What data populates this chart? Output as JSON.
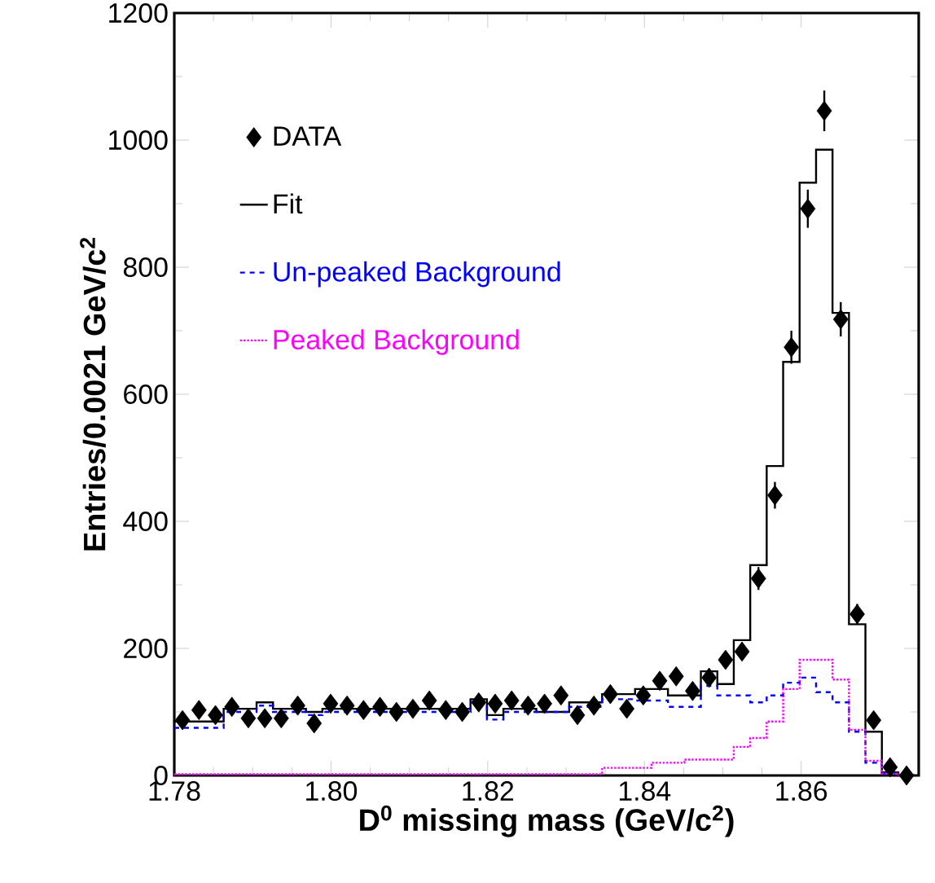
{
  "chart_data": {
    "type": "histogram",
    "xlabel": "D$^{0}$ missing mass (GeV/c$^{2}$)",
    "ylabel": "Entries/0.0021 GeV/c$^{2}$",
    "xlim": [
      1.78,
      1.875
    ],
    "ylim": [
      0,
      1200
    ],
    "xticks": [
      1.78,
      {
        "value": 1.8,
        "label": "1.80"
      },
      1.82,
      1.84,
      1.86
    ],
    "yticks": [
      0,
      200,
      400,
      600,
      800,
      1000,
      1200
    ],
    "legend": "top left",
    "bins": [
      1.78,
      1.7821,
      1.7842,
      1.7863,
      1.7884,
      1.7905,
      1.7926,
      1.7947,
      1.7968,
      1.7989,
      1.801,
      1.8031,
      1.8052,
      1.8073,
      1.8094,
      1.8115,
      1.8136,
      1.8157,
      1.8178,
      1.8199,
      1.822,
      1.8241,
      1.8262,
      1.8283,
      1.8304,
      1.8325,
      1.8346,
      1.8367,
      1.8388,
      1.8409,
      1.843,
      1.8451,
      1.8472,
      1.8493,
      1.8514,
      1.8535,
      1.8556,
      1.8577,
      1.8598,
      1.8619,
      1.864,
      1.8661,
      1.8682,
      1.8703,
      1.8724,
      1.8745
    ],
    "series": [
      {
        "name": "DATA",
        "type": "scatter",
        "marker": "diamond",
        "color": "#000000",
        "x": [
          1.78105,
          1.78315,
          1.78525,
          1.78735,
          1.78945,
          1.79155,
          1.79365,
          1.79575,
          1.79785,
          1.79995,
          1.80205,
          1.80415,
          1.80625,
          1.80835,
          1.81045,
          1.81255,
          1.81465,
          1.81675,
          1.81885,
          1.82095,
          1.82305,
          1.82515,
          1.82725,
          1.82935,
          1.83145,
          1.83355,
          1.83565,
          1.83775,
          1.83985,
          1.84195,
          1.84405,
          1.84615,
          1.84825,
          1.85035,
          1.85245,
          1.85455,
          1.85665,
          1.85875,
          1.86085,
          1.86295,
          1.86505,
          1.86715,
          1.86925,
          1.87135,
          1.87345
        ],
        "values": [
          87,
          103,
          95,
          108,
          90,
          90,
          90,
          110,
          82,
          113,
          110,
          103,
          108,
          100,
          105,
          118,
          103,
          100,
          115,
          113,
          118,
          110,
          113,
          126,
          95,
          110,
          128,
          105,
          126,
          149,
          156,
          133,
          154,
          182,
          195,
          310,
          441,
          674,
          892,
          1046,
          718,
          254,
          87,
          13,
          0
        ],
        "errors": [
          null,
          null,
          null,
          null,
          null,
          null,
          null,
          null,
          null,
          null,
          null,
          null,
          null,
          null,
          null,
          null,
          null,
          null,
          null,
          null,
          null,
          null,
          null,
          null,
          null,
          null,
          null,
          null,
          null,
          null,
          null,
          null,
          null,
          null,
          null,
          18,
          21,
          26,
          30,
          32,
          27,
          16,
          null,
          null,
          null
        ]
      },
      {
        "name": "Fit",
        "line_style": "solid",
        "color": "#000000",
        "values": [
          85,
          85,
          85,
          105,
          105,
          115,
          105,
          105,
          100,
          105,
          105,
          105,
          105,
          105,
          105,
          105,
          105,
          105,
          120,
          95,
          105,
          105,
          100,
          100,
          115,
          115,
          128,
          128,
          136,
          136,
          126,
          126,
          164,
          144,
          213,
          331,
          487,
          651,
          933,
          985,
          728,
          238,
          69,
          5,
          0
        ]
      },
      {
        "name": "Un-peaked Background",
        "line_style": "dashed",
        "color": "#0000ff",
        "values": [
          75,
          75,
          75,
          100,
          100,
          110,
          100,
          100,
          95,
          100,
          100,
          100,
          100,
          100,
          100,
          100,
          100,
          100,
          115,
          88,
          100,
          100,
          100,
          100,
          108,
          108,
          120,
          120,
          118,
          118,
          108,
          108,
          141,
          126,
          126,
          115,
          126,
          146,
          154,
          131,
          115,
          69,
          20,
          3,
          0
        ]
      },
      {
        "name": "Peaked Background",
        "line_style": "dotted",
        "color": "#ff00ff",
        "values": [
          2,
          2,
          2,
          2,
          2,
          2,
          2,
          2,
          2,
          2,
          2,
          2,
          2,
          2,
          2,
          2,
          2,
          2,
          2,
          2,
          2,
          2,
          2,
          2,
          2,
          2,
          12,
          12,
          12,
          20,
          20,
          25,
          25,
          25,
          45,
          59,
          85,
          136,
          182,
          182,
          151,
          72,
          23,
          3,
          0
        ]
      }
    ]
  }
}
